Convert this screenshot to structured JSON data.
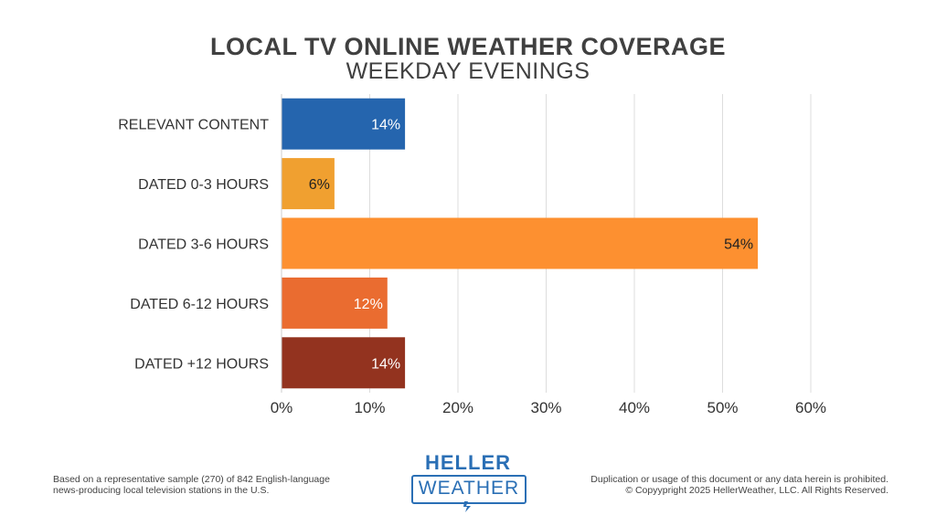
{
  "header": {
    "title": "LOCAL TV ONLINE WEATHER COVERAGE",
    "subtitle": "WEEKDAY EVENINGS"
  },
  "chart_data": {
    "type": "bar",
    "orientation": "horizontal",
    "title": "LOCAL TV ONLINE WEATHER COVERAGE",
    "subtitle": "WEEKDAY EVENINGS",
    "categories": [
      "RELEVANT CONTENT",
      "DATED 0-3 HOURS",
      "DATED 3-6 HOURS",
      "DATED 6-12 HOURS",
      "DATED +12 HOURS"
    ],
    "values": [
      14,
      6,
      54,
      12,
      14
    ],
    "data_labels": [
      "14%",
      "6%",
      "54%",
      "12%",
      "14%"
    ],
    "colors": [
      "#2565ae",
      "#f0a030",
      "#fd9030",
      "#ea6c30",
      "#93331f"
    ],
    "label_colors": [
      "#ffffff",
      "#222222",
      "#222222",
      "#ffffff",
      "#ffffff"
    ],
    "xlim": [
      0,
      60
    ],
    "x_ticks": [
      0,
      10,
      20,
      30,
      40,
      50,
      60
    ],
    "x_tick_labels": [
      "0%",
      "10%",
      "20%",
      "30%",
      "40%",
      "50%",
      "60%"
    ],
    "xlabel": "",
    "ylabel": "",
    "grid": true,
    "legend": "none"
  },
  "footer": {
    "note_line1": "Based on a representative sample (270) of 842 English-language",
    "note_line2": "news-producing local television stations in the U.S.",
    "rights_line1": "Duplication or usage of this document or any data herein is prohibited.",
    "rights_line2": "© Copyypright 2025 HellerWeather, LLC. All Rights Reserved.",
    "logo_top": "HELLER",
    "logo_bottom": "WEATHER",
    "logo_color": "#2a6fb5"
  }
}
